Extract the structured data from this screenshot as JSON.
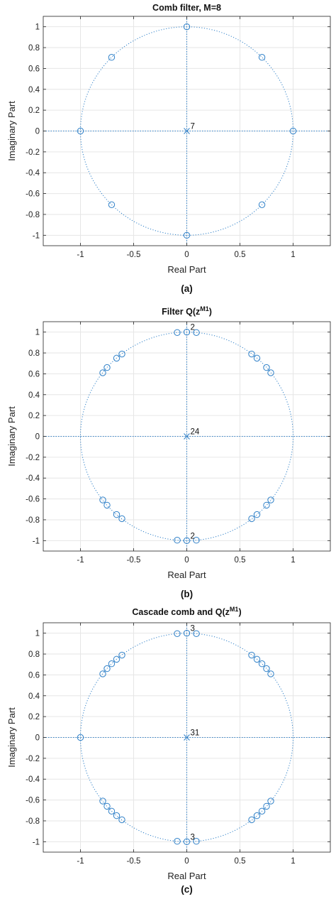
{
  "colors": {
    "marker": "#2f80c8",
    "grid": "#e6e6e6",
    "axis": "#222222"
  },
  "chart_data": [
    {
      "type": "scatter",
      "title": "Comb filter, M=8",
      "title_superscript": "",
      "title_suffix": "",
      "caption": "(a)",
      "xlabel": "Real Part",
      "ylabel": "Imaginary Part",
      "xlim": [
        -1.35,
        1.35
      ],
      "ylim": [
        -1.1,
        1.1
      ],
      "xticks": [
        -1,
        -0.5,
        0,
        0.5,
        1
      ],
      "xtick_labels": [
        "-1",
        "-0.5",
        "0",
        "0.5",
        "1"
      ],
      "yticks": [
        1,
        0.8,
        0.6,
        0.4,
        0.2,
        0,
        -0.2,
        -0.4,
        -0.6,
        -0.8,
        -1
      ],
      "ytick_labels": [
        "1",
        "0.8",
        "0.6",
        "0.4",
        "0.2",
        "0",
        "-0.2",
        "-0.4",
        "-0.6",
        "-0.8",
        "-1"
      ],
      "grid": true,
      "unit_circle": true,
      "zeros": [
        [
          1,
          0
        ],
        [
          0.707,
          0.707
        ],
        [
          0,
          1
        ],
        [
          -0.707,
          0.707
        ],
        [
          -1,
          0
        ],
        [
          -0.707,
          -0.707
        ],
        [
          0,
          -1
        ],
        [
          0.707,
          -0.707
        ]
      ],
      "poles": [
        [
          0,
          0
        ]
      ],
      "multiplicity_labels": [
        {
          "x": 0,
          "y": 0,
          "text": "7"
        }
      ]
    },
    {
      "type": "scatter",
      "title": "Filter Q(z",
      "title_superscript": "M1",
      "title_suffix": ")",
      "caption": "(b)",
      "xlabel": "Real Part",
      "ylabel": "Imaginary Part",
      "xlim": [
        -1.35,
        1.35
      ],
      "ylim": [
        -1.1,
        1.1
      ],
      "xticks": [
        -1,
        -0.5,
        0,
        0.5,
        1
      ],
      "xtick_labels": [
        "-1",
        "-0.5",
        "0",
        "0.5",
        "1"
      ],
      "yticks": [
        1,
        0.8,
        0.6,
        0.4,
        0.2,
        0,
        -0.2,
        -0.4,
        -0.6,
        -0.8,
        -1
      ],
      "ytick_labels": [
        "1",
        "0.8",
        "0.6",
        "0.4",
        "0.2",
        "0",
        "-0.2",
        "-0.4",
        "-0.6",
        "-0.8",
        "-1"
      ],
      "grid": true,
      "unit_circle": true,
      "zeros": [
        [
          -0.09,
          0.996
        ],
        [
          0.09,
          0.996
        ],
        [
          0,
          1
        ],
        [
          -0.09,
          -0.996
        ],
        [
          0.09,
          -0.996
        ],
        [
          0,
          -1
        ],
        [
          0.61,
          0.79
        ],
        [
          0.66,
          0.75
        ],
        [
          0.75,
          0.66
        ],
        [
          0.79,
          0.61
        ],
        [
          -0.61,
          0.79
        ],
        [
          -0.66,
          0.75
        ],
        [
          -0.75,
          0.66
        ],
        [
          -0.79,
          0.61
        ],
        [
          0.61,
          -0.79
        ],
        [
          0.66,
          -0.75
        ],
        [
          0.75,
          -0.66
        ],
        [
          0.79,
          -0.61
        ],
        [
          -0.61,
          -0.79
        ],
        [
          -0.66,
          -0.75
        ],
        [
          -0.75,
          -0.66
        ],
        [
          -0.79,
          -0.61
        ]
      ],
      "poles": [
        [
          0,
          0
        ]
      ],
      "multiplicity_labels": [
        {
          "x": 0,
          "y": 1,
          "text": "2"
        },
        {
          "x": 0,
          "y": -1,
          "text": "2"
        },
        {
          "x": 0,
          "y": 0,
          "text": "24"
        }
      ]
    },
    {
      "type": "scatter",
      "title": "Cascade  comb and Q(z",
      "title_superscript": "M1",
      "title_suffix": ")",
      "caption": "(c)",
      "xlabel": "Real Part",
      "ylabel": "Imaginary Part",
      "xlim": [
        -1.35,
        1.35
      ],
      "ylim": [
        -1.1,
        1.1
      ],
      "xticks": [
        -1,
        -0.5,
        0,
        0.5,
        1
      ],
      "xtick_labels": [
        "-1",
        "-0.5",
        "0",
        "0.5",
        "1"
      ],
      "yticks": [
        1,
        0.8,
        0.6,
        0.4,
        0.2,
        0,
        -0.2,
        -0.4,
        -0.6,
        -0.8,
        -1
      ],
      "ytick_labels": [
        "1",
        "0.8",
        "0.6",
        "0.4",
        "0.2",
        "0",
        "-0.2",
        "-0.4",
        "-0.6",
        "-0.8",
        "-1"
      ],
      "grid": true,
      "unit_circle": true,
      "zeros": [
        [
          -1,
          0
        ],
        [
          -0.09,
          0.996
        ],
        [
          0.09,
          0.996
        ],
        [
          0,
          1
        ],
        [
          -0.09,
          -0.996
        ],
        [
          0.09,
          -0.996
        ],
        [
          0,
          -1
        ],
        [
          0.61,
          0.79
        ],
        [
          0.66,
          0.75
        ],
        [
          0.707,
          0.707
        ],
        [
          0.75,
          0.66
        ],
        [
          0.79,
          0.61
        ],
        [
          -0.61,
          0.79
        ],
        [
          -0.66,
          0.75
        ],
        [
          -0.707,
          0.707
        ],
        [
          -0.75,
          0.66
        ],
        [
          -0.79,
          0.61
        ],
        [
          0.61,
          -0.79
        ],
        [
          0.66,
          -0.75
        ],
        [
          0.707,
          -0.707
        ],
        [
          0.75,
          -0.66
        ],
        [
          0.79,
          -0.61
        ],
        [
          -0.61,
          -0.79
        ],
        [
          -0.66,
          -0.75
        ],
        [
          -0.707,
          -0.707
        ],
        [
          -0.75,
          -0.66
        ],
        [
          -0.79,
          -0.61
        ]
      ],
      "poles": [
        [
          0,
          0
        ]
      ],
      "multiplicity_labels": [
        {
          "x": 0,
          "y": 1,
          "text": "3"
        },
        {
          "x": 0,
          "y": -1,
          "text": "3"
        },
        {
          "x": 0,
          "y": 0,
          "text": "31"
        }
      ]
    }
  ]
}
